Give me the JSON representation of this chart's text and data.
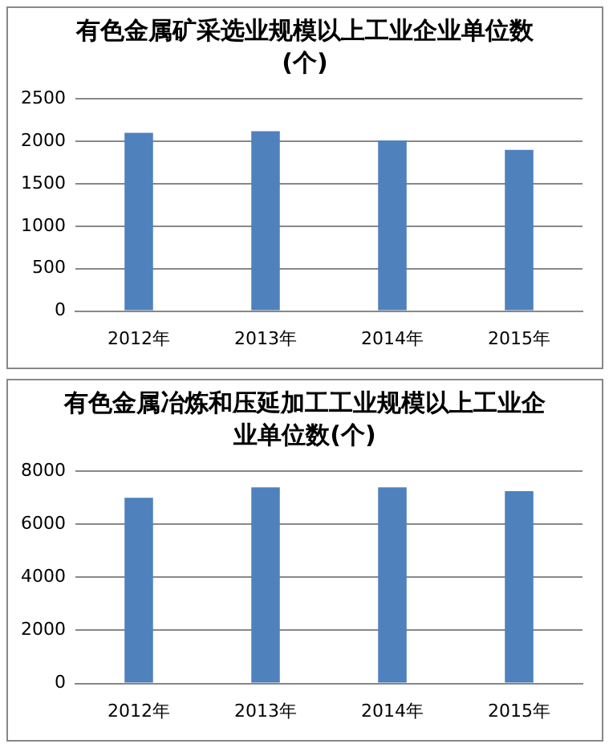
{
  "chart_data": [
    {
      "type": "bar",
      "title": "有色金属矿采选业规模以上工业企业单位数(个)",
      "categories": [
        "2012年",
        "2013年",
        "2014年",
        "2015年"
      ],
      "values": [
        2100,
        2120,
        2010,
        1900
      ],
      "color": "#4f81bd",
      "ylim": [
        0,
        2500
      ],
      "yticks": [
        0,
        500,
        1000,
        1500,
        2000,
        2500
      ],
      "grid": "y",
      "legend": false
    },
    {
      "type": "bar",
      "title": "有色金属冶炼和压延加工工业规模以上工业企业单位数(个)",
      "categories": [
        "2012年",
        "2013年",
        "2014年",
        "2015年"
      ],
      "values": [
        7000,
        7390,
        7390,
        7250
      ],
      "color": "#4f81bd",
      "ylim": [
        0,
        8000
      ],
      "yticks": [
        0,
        2000,
        4000,
        6000,
        8000
      ],
      "grid": "y",
      "legend": false
    }
  ]
}
